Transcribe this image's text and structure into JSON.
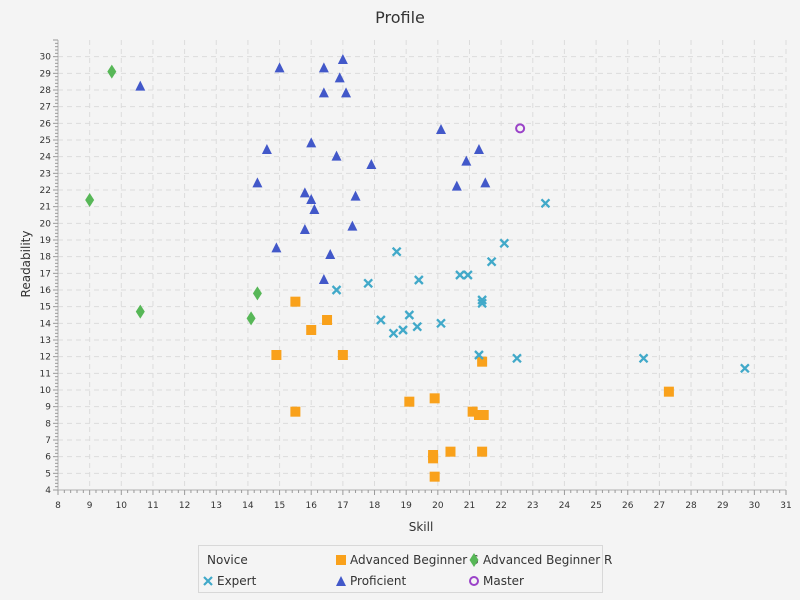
{
  "chart_data": {
    "type": "scatter",
    "title": "Profile",
    "xlabel": "Skill",
    "ylabel": "Readability",
    "xlim": [
      8,
      31
    ],
    "ylim": [
      4,
      31
    ],
    "x_ticks": [
      8,
      9,
      10,
      11,
      12,
      13,
      14,
      15,
      16,
      17,
      18,
      19,
      20,
      21,
      22,
      23,
      24,
      25,
      26,
      27,
      28,
      29,
      30,
      31
    ],
    "y_ticks": [
      4,
      5,
      6,
      7,
      8,
      9,
      10,
      11,
      12,
      13,
      14,
      15,
      16,
      17,
      18,
      19,
      20,
      21,
      22,
      23,
      24,
      25,
      26,
      27,
      28,
      29,
      30
    ],
    "grid": true,
    "legend_position": "bottom",
    "series": [
      {
        "name": "Novice",
        "marker": "none",
        "color": "#f3622d",
        "points": []
      },
      {
        "name": "Advanced Beginner S",
        "marker": "square",
        "color": "#f9a11b",
        "points": [
          [
            15.5,
            15.3
          ],
          [
            16.5,
            14.2
          ],
          [
            16.0,
            13.6
          ],
          [
            14.9,
            12.1
          ],
          [
            17.0,
            12.1
          ],
          [
            21.4,
            11.7
          ],
          [
            27.3,
            9.9
          ],
          [
            19.9,
            9.5
          ],
          [
            19.1,
            9.3
          ],
          [
            15.5,
            8.7
          ],
          [
            21.1,
            8.7
          ],
          [
            21.3,
            8.5
          ],
          [
            21.45,
            8.5
          ],
          [
            20.4,
            6.3
          ],
          [
            21.4,
            6.3
          ],
          [
            19.85,
            6.1
          ],
          [
            19.85,
            5.9
          ],
          [
            19.9,
            4.8
          ]
        ]
      },
      {
        "name": "Advanced Beginner R",
        "marker": "diamond",
        "color": "#57b757",
        "points": [
          [
            9.7,
            29.1
          ],
          [
            9.0,
            21.4
          ],
          [
            14.3,
            15.8
          ],
          [
            10.6,
            14.7
          ],
          [
            14.1,
            14.3
          ]
        ]
      },
      {
        "name": "Expert",
        "marker": "x",
        "color": "#41a9c9",
        "points": [
          [
            23.4,
            21.2
          ],
          [
            22.1,
            18.8
          ],
          [
            18.7,
            18.3
          ],
          [
            21.7,
            17.7
          ],
          [
            20.7,
            16.9
          ],
          [
            20.95,
            16.9
          ],
          [
            19.4,
            16.6
          ],
          [
            17.8,
            16.4
          ],
          [
            16.8,
            16.0
          ],
          [
            21.4,
            15.4
          ],
          [
            21.4,
            15.2
          ],
          [
            19.1,
            14.5
          ],
          [
            18.2,
            14.2
          ],
          [
            20.1,
            14.0
          ],
          [
            19.35,
            13.8
          ],
          [
            18.9,
            13.6
          ],
          [
            18.6,
            13.4
          ],
          [
            21.3,
            12.1
          ],
          [
            22.5,
            11.9
          ],
          [
            26.5,
            11.9
          ],
          [
            29.7,
            11.3
          ]
        ]
      },
      {
        "name": "Proficient",
        "marker": "triangle",
        "color": "#4258c9",
        "points": [
          [
            17.0,
            29.8
          ],
          [
            15.0,
            29.3
          ],
          [
            16.4,
            29.3
          ],
          [
            16.9,
            28.7
          ],
          [
            10.6,
            28.2
          ],
          [
            16.4,
            27.8
          ],
          [
            17.1,
            27.8
          ],
          [
            20.1,
            25.6
          ],
          [
            16.0,
            24.8
          ],
          [
            14.6,
            24.4
          ],
          [
            21.3,
            24.4
          ],
          [
            16.8,
            24.0
          ],
          [
            20.9,
            23.7
          ],
          [
            17.9,
            23.5
          ],
          [
            14.3,
            22.4
          ],
          [
            21.5,
            22.4
          ],
          [
            20.6,
            22.2
          ],
          [
            15.8,
            21.8
          ],
          [
            16.0,
            21.4
          ],
          [
            17.4,
            21.6
          ],
          [
            16.1,
            20.8
          ],
          [
            17.3,
            19.8
          ],
          [
            15.8,
            19.6
          ],
          [
            14.9,
            18.5
          ],
          [
            16.6,
            18.1
          ],
          [
            16.4,
            16.6
          ]
        ]
      },
      {
        "name": "Master",
        "marker": "circle",
        "color": "#9a42c8",
        "points": [
          [
            22.6,
            25.7
          ]
        ]
      }
    ]
  }
}
